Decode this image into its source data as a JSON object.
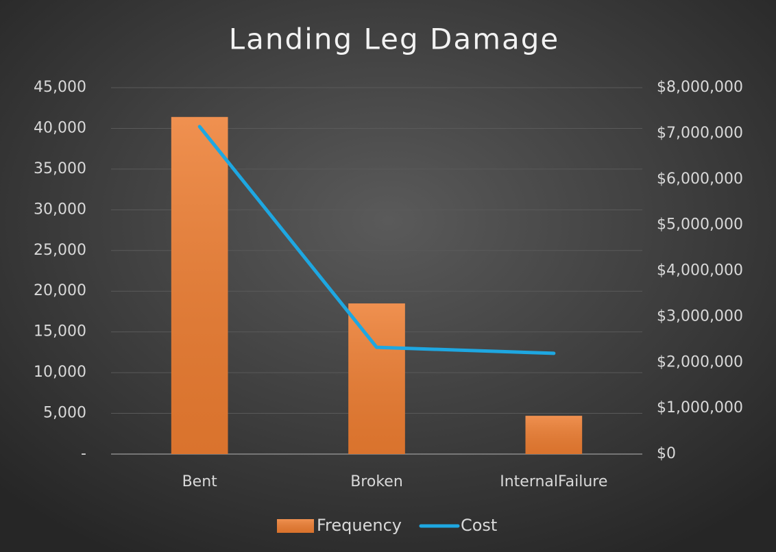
{
  "chart_data": {
    "type": "bar",
    "title": "Landing Leg Damage",
    "categories": [
      "Bent",
      "Broken",
      "InternalFailure"
    ],
    "series": [
      {
        "name": "Frequency",
        "type": "bar",
        "color": "#ed7d31",
        "values": [
          41400,
          18500,
          4700
        ]
      },
      {
        "name": "Cost",
        "type": "line",
        "axis": "y2",
        "color": "#1ea7e1",
        "values": [
          7150000,
          2330000,
          2200000
        ]
      }
    ],
    "ylim": [
      0,
      45000
    ],
    "yticks": [
      {
        "value": 0,
        "label": "-"
      },
      {
        "value": 5000,
        "label": "5,000"
      },
      {
        "value": 10000,
        "label": "10,000"
      },
      {
        "value": 15000,
        "label": "15,000"
      },
      {
        "value": 20000,
        "label": "20,000"
      },
      {
        "value": 25000,
        "label": "25,000"
      },
      {
        "value": 30000,
        "label": "30,000"
      },
      {
        "value": 35000,
        "label": "35,000"
      },
      {
        "value": 40000,
        "label": "40,000"
      },
      {
        "value": 45000,
        "label": "45,000"
      }
    ],
    "y2lim": [
      0,
      8000000
    ],
    "y2ticks": [
      {
        "value": 0,
        "label": "$0"
      },
      {
        "value": 1000000,
        "label": "$1,000,000"
      },
      {
        "value": 2000000,
        "label": "$2,000,000"
      },
      {
        "value": 3000000,
        "label": "$3,000,000"
      },
      {
        "value": 4000000,
        "label": "$4,000,000"
      },
      {
        "value": 5000000,
        "label": "$5,000,000"
      },
      {
        "value": 6000000,
        "label": "$6,000,000"
      },
      {
        "value": 7000000,
        "label": "$7,000,000"
      },
      {
        "value": 8000000,
        "label": "$8,000,000"
      }
    ],
    "grid": true,
    "legend": "bottom"
  }
}
